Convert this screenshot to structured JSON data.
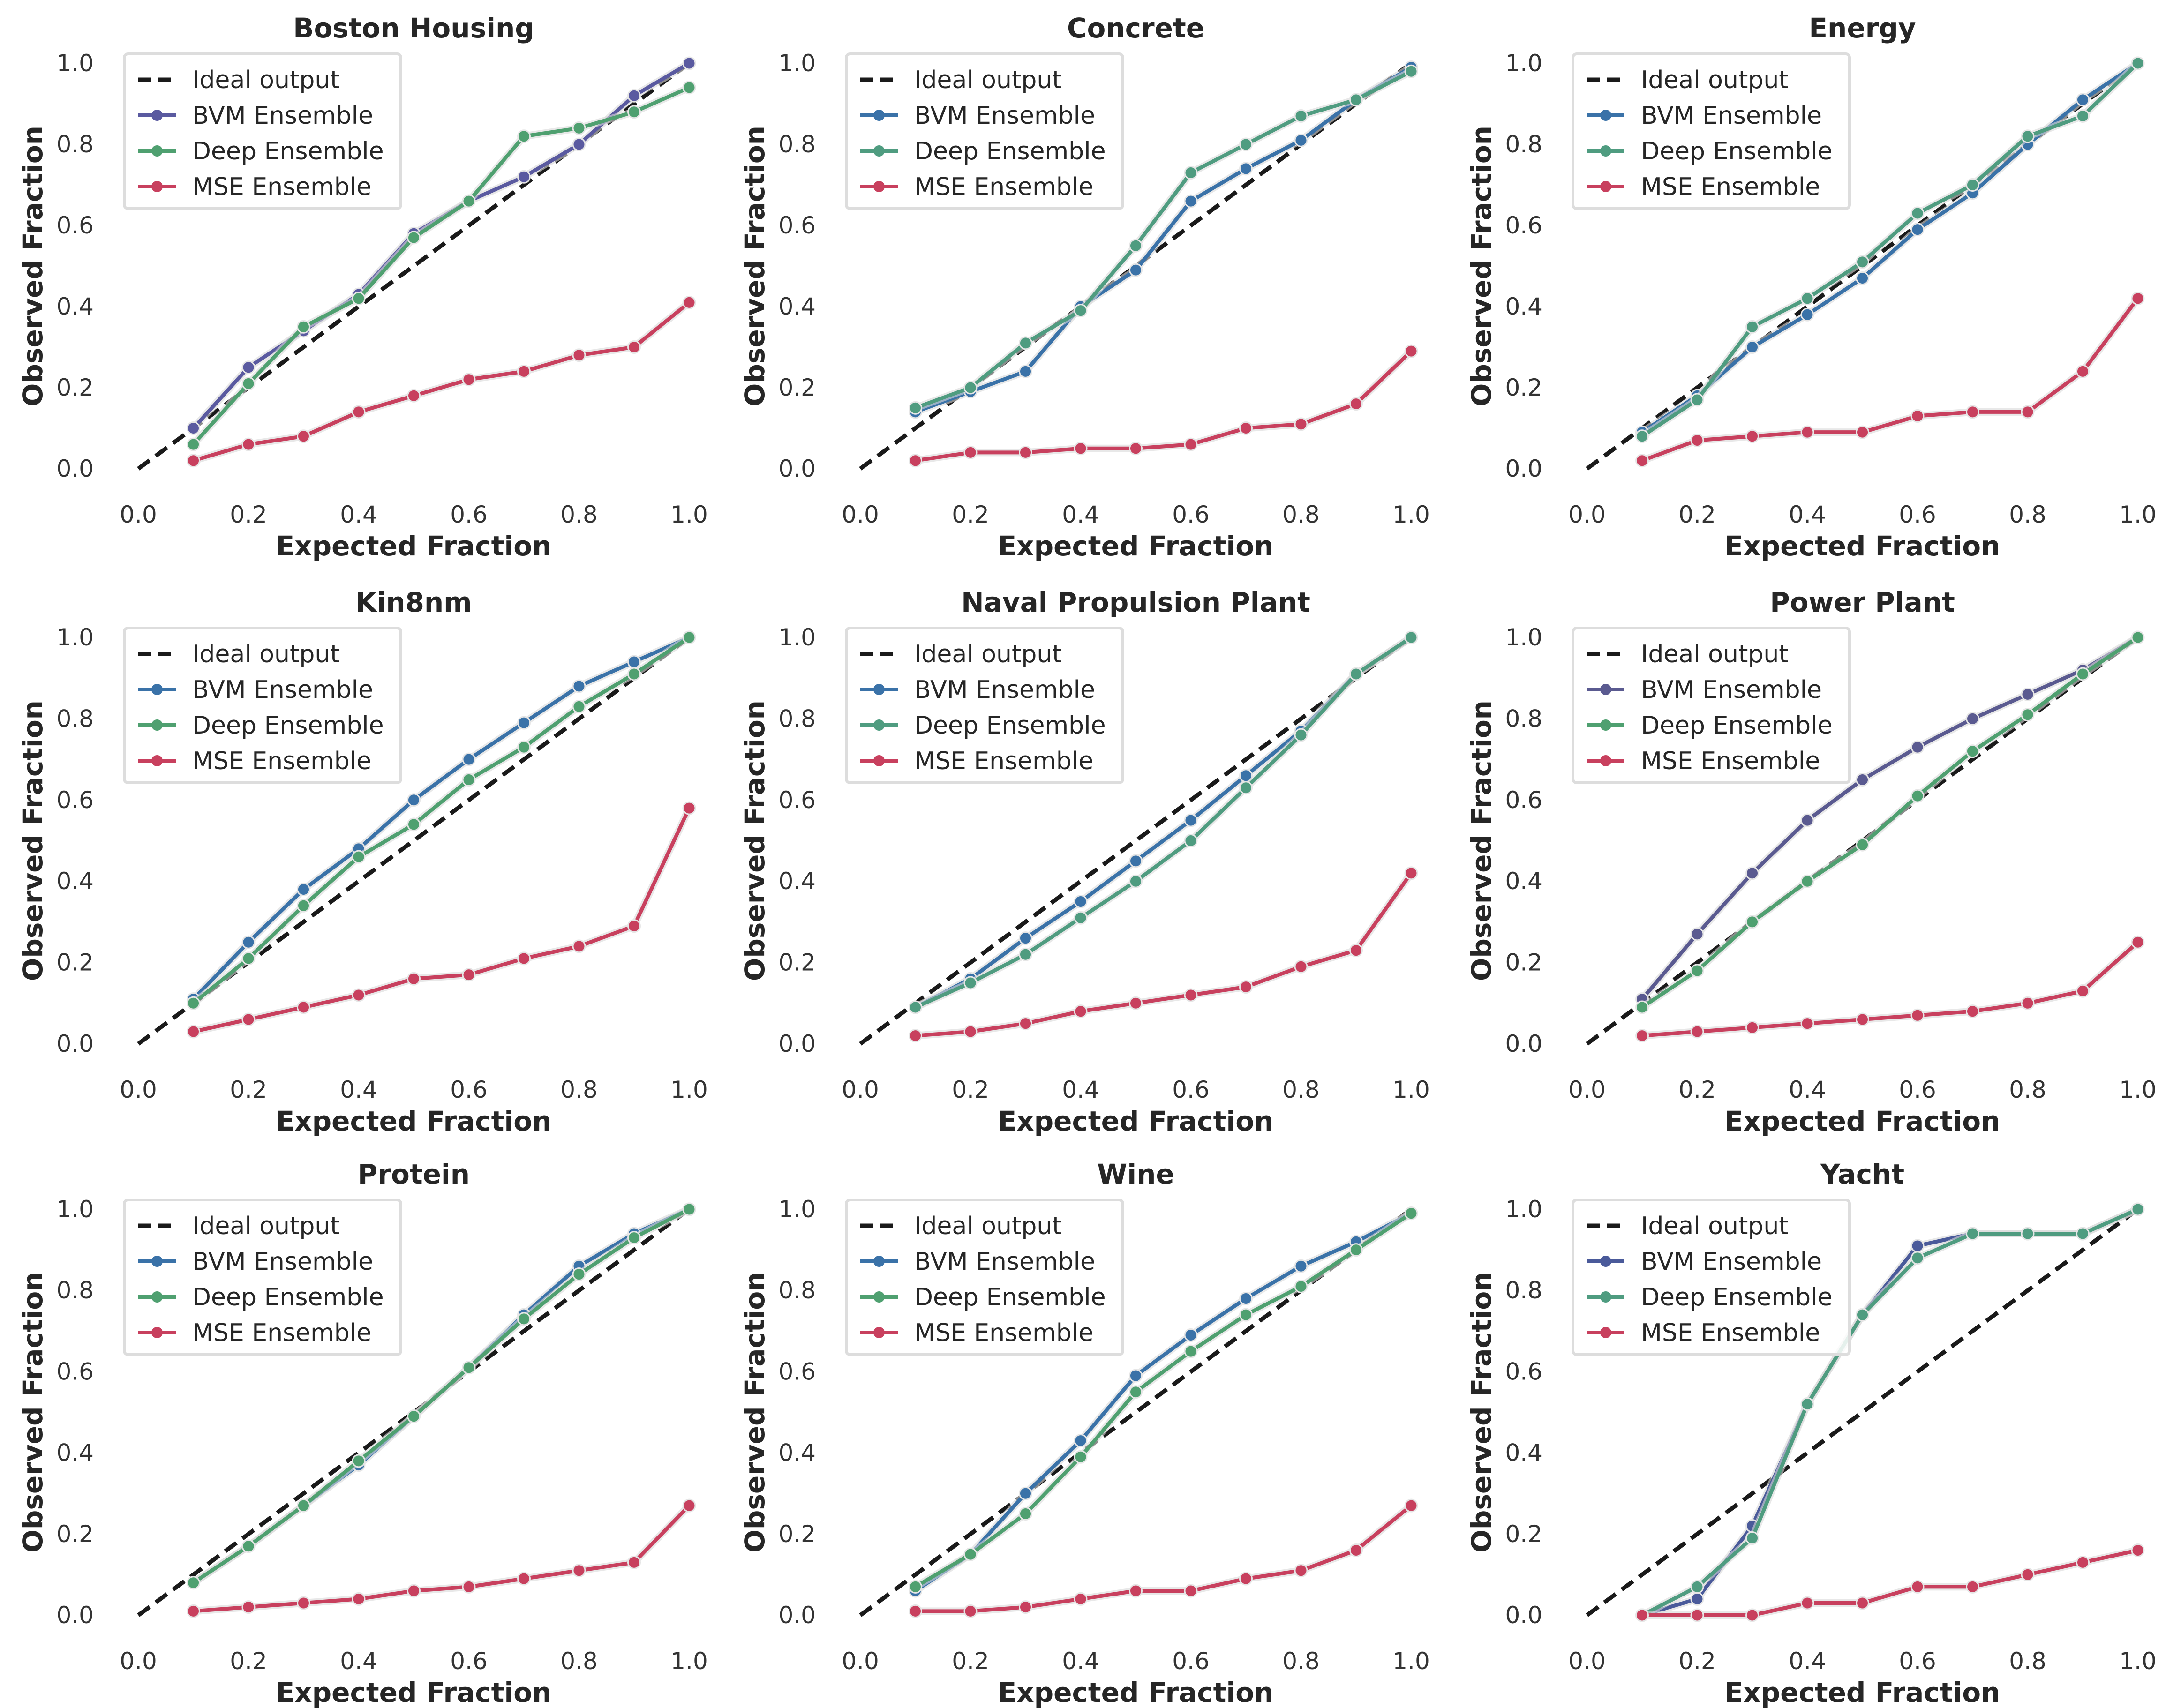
{
  "figure": {
    "background": "#ffffff"
  },
  "chart_data": [
    {
      "type": "line",
      "title": "Boston Housing",
      "xlabel": "Expected Fraction",
      "ylabel": "Observed Fraction",
      "xlim": [
        0,
        1
      ],
      "ylim": [
        0,
        1
      ],
      "x_ticks": [
        "0.0",
        "0.2",
        "0.4",
        "0.6",
        "0.8",
        "1.0"
      ],
      "y_ticks": [
        "0.0",
        "0.2",
        "0.4",
        "0.6",
        "0.8",
        "1.0"
      ],
      "grid": false,
      "legend_position": "top-left",
      "x": [
        0.1,
        0.2,
        0.3,
        0.4,
        0.5,
        0.6,
        0.7,
        0.8,
        0.9,
        1.0
      ],
      "ideal": {
        "name": "Ideal output",
        "color": "#1a1a1a",
        "x": [
          0,
          1
        ],
        "y": [
          0,
          1
        ]
      },
      "series": [
        {
          "name": "BVM Ensemble",
          "color": "#5a5aa0",
          "values": [
            0.1,
            0.25,
            0.34,
            0.43,
            0.58,
            0.66,
            0.72,
            0.8,
            0.92,
            1.0
          ]
        },
        {
          "name": "Deep Ensemble",
          "color": "#4fa070",
          "values": [
            0.06,
            0.21,
            0.35,
            0.42,
            0.57,
            0.66,
            0.82,
            0.84,
            0.88,
            0.94
          ]
        },
        {
          "name": "MSE Ensemble",
          "color": "#c8405e",
          "values": [
            0.02,
            0.06,
            0.08,
            0.14,
            0.18,
            0.22,
            0.24,
            0.28,
            0.3,
            0.41
          ]
        }
      ]
    },
    {
      "type": "line",
      "title": "Concrete",
      "xlabel": "Expected Fraction",
      "ylabel": "Observed Fraction",
      "xlim": [
        0,
        1
      ],
      "ylim": [
        0,
        1
      ],
      "x_ticks": [
        "0.0",
        "0.2",
        "0.4",
        "0.6",
        "0.8",
        "1.0"
      ],
      "y_ticks": [
        "0.0",
        "0.2",
        "0.4",
        "0.6",
        "0.8",
        "1.0"
      ],
      "grid": false,
      "legend_position": "top-left",
      "x": [
        0.1,
        0.2,
        0.3,
        0.4,
        0.5,
        0.6,
        0.7,
        0.8,
        0.9,
        1.0
      ],
      "ideal": {
        "name": "Ideal output",
        "color": "#1a1a1a",
        "x": [
          0,
          1
        ],
        "y": [
          0,
          1
        ]
      },
      "series": [
        {
          "name": "BVM Ensemble",
          "color": "#3a72a8",
          "values": [
            0.14,
            0.19,
            0.24,
            0.4,
            0.49,
            0.66,
            0.74,
            0.81,
            0.91,
            0.99
          ]
        },
        {
          "name": "Deep Ensemble",
          "color": "#4f9c80",
          "values": [
            0.15,
            0.2,
            0.31,
            0.39,
            0.55,
            0.73,
            0.8,
            0.87,
            0.91,
            0.98
          ]
        },
        {
          "name": "MSE Ensemble",
          "color": "#c8405e",
          "values": [
            0.02,
            0.04,
            0.04,
            0.05,
            0.05,
            0.06,
            0.1,
            0.11,
            0.16,
            0.29
          ]
        }
      ]
    },
    {
      "type": "line",
      "title": "Energy",
      "xlabel": "Expected Fraction",
      "ylabel": "Observed Fraction",
      "xlim": [
        0,
        1
      ],
      "ylim": [
        0,
        1
      ],
      "x_ticks": [
        "0.0",
        "0.2",
        "0.4",
        "0.6",
        "0.8",
        "1.0"
      ],
      "y_ticks": [
        "0.0",
        "0.2",
        "0.4",
        "0.6",
        "0.8",
        "1.0"
      ],
      "grid": false,
      "legend_position": "top-left",
      "x": [
        0.1,
        0.2,
        0.3,
        0.4,
        0.5,
        0.6,
        0.7,
        0.8,
        0.9,
        1.0
      ],
      "ideal": {
        "name": "Ideal output",
        "color": "#1a1a1a",
        "x": [
          0,
          1
        ],
        "y": [
          0,
          1
        ]
      },
      "series": [
        {
          "name": "BVM Ensemble",
          "color": "#3a72a8",
          "values": [
            0.09,
            0.18,
            0.3,
            0.38,
            0.47,
            0.59,
            0.68,
            0.8,
            0.91,
            1.0
          ]
        },
        {
          "name": "Deep Ensemble",
          "color": "#4f9c80",
          "values": [
            0.08,
            0.17,
            0.35,
            0.42,
            0.51,
            0.63,
            0.7,
            0.82,
            0.87,
            1.0
          ]
        },
        {
          "name": "MSE Ensemble",
          "color": "#c8405e",
          "values": [
            0.02,
            0.07,
            0.08,
            0.09,
            0.09,
            0.13,
            0.14,
            0.14,
            0.24,
            0.42
          ]
        }
      ]
    },
    {
      "type": "line",
      "title": "Kin8nm",
      "xlabel": "Expected Fraction",
      "ylabel": "Observed Fraction",
      "xlim": [
        0,
        1
      ],
      "ylim": [
        0,
        1
      ],
      "x_ticks": [
        "0.0",
        "0.2",
        "0.4",
        "0.6",
        "0.8",
        "1.0"
      ],
      "y_ticks": [
        "0.0",
        "0.2",
        "0.4",
        "0.6",
        "0.8",
        "1.0"
      ],
      "grid": false,
      "legend_position": "top-left",
      "x": [
        0.1,
        0.2,
        0.3,
        0.4,
        0.5,
        0.6,
        0.7,
        0.8,
        0.9,
        1.0
      ],
      "ideal": {
        "name": "Ideal output",
        "color": "#1a1a1a",
        "x": [
          0,
          1
        ],
        "y": [
          0,
          1
        ]
      },
      "series": [
        {
          "name": "BVM Ensemble",
          "color": "#3a72a8",
          "values": [
            0.11,
            0.25,
            0.38,
            0.48,
            0.6,
            0.7,
            0.79,
            0.88,
            0.94,
            1.0
          ]
        },
        {
          "name": "Deep Ensemble",
          "color": "#4fa070",
          "values": [
            0.1,
            0.21,
            0.34,
            0.46,
            0.54,
            0.65,
            0.73,
            0.83,
            0.91,
            1.0
          ]
        },
        {
          "name": "MSE Ensemble",
          "color": "#c8405e",
          "values": [
            0.03,
            0.06,
            0.09,
            0.12,
            0.16,
            0.17,
            0.21,
            0.24,
            0.29,
            0.58
          ]
        }
      ]
    },
    {
      "type": "line",
      "title": "Naval Propulsion Plant",
      "xlabel": "Expected Fraction",
      "ylabel": "Observed Fraction",
      "xlim": [
        0,
        1
      ],
      "ylim": [
        0,
        1
      ],
      "x_ticks": [
        "0.0",
        "0.2",
        "0.4",
        "0.6",
        "0.8",
        "1.0"
      ],
      "y_ticks": [
        "0.0",
        "0.2",
        "0.4",
        "0.6",
        "0.8",
        "1.0"
      ],
      "grid": false,
      "legend_position": "top-left",
      "x": [
        0.1,
        0.2,
        0.3,
        0.4,
        0.5,
        0.6,
        0.7,
        0.8,
        0.9,
        1.0
      ],
      "ideal": {
        "name": "Ideal output",
        "color": "#1a1a1a",
        "x": [
          0,
          1
        ],
        "y": [
          0,
          1
        ]
      },
      "series": [
        {
          "name": "BVM Ensemble",
          "color": "#3a72a8",
          "values": [
            0.09,
            0.16,
            0.26,
            0.35,
            0.45,
            0.55,
            0.66,
            0.77,
            0.91,
            1.0
          ]
        },
        {
          "name": "Deep Ensemble",
          "color": "#4f9c80",
          "values": [
            0.09,
            0.15,
            0.22,
            0.31,
            0.4,
            0.5,
            0.63,
            0.76,
            0.91,
            1.0
          ]
        },
        {
          "name": "MSE Ensemble",
          "color": "#c8405e",
          "values": [
            0.02,
            0.03,
            0.05,
            0.08,
            0.1,
            0.12,
            0.14,
            0.19,
            0.23,
            0.42
          ]
        }
      ]
    },
    {
      "type": "line",
      "title": "Power Plant",
      "xlabel": "Expected Fraction",
      "ylabel": "Observed Fraction",
      "xlim": [
        0,
        1
      ],
      "ylim": [
        0,
        1
      ],
      "x_ticks": [
        "0.0",
        "0.2",
        "0.4",
        "0.6",
        "0.8",
        "1.0"
      ],
      "y_ticks": [
        "0.0",
        "0.2",
        "0.4",
        "0.6",
        "0.8",
        "1.0"
      ],
      "grid": false,
      "legend_position": "top-left",
      "x": [
        0.1,
        0.2,
        0.3,
        0.4,
        0.5,
        0.6,
        0.7,
        0.8,
        0.9,
        1.0
      ],
      "ideal": {
        "name": "Ideal output",
        "color": "#1a1a1a",
        "x": [
          0,
          1
        ],
        "y": [
          0,
          1
        ]
      },
      "series": [
        {
          "name": "BVM Ensemble",
          "color": "#5a5a90",
          "values": [
            0.11,
            0.27,
            0.42,
            0.55,
            0.65,
            0.73,
            0.8,
            0.86,
            0.92,
            1.0
          ]
        },
        {
          "name": "Deep Ensemble",
          "color": "#4fa070",
          "values": [
            0.09,
            0.18,
            0.3,
            0.4,
            0.49,
            0.61,
            0.72,
            0.81,
            0.91,
            1.0
          ]
        },
        {
          "name": "MSE Ensemble",
          "color": "#c8405e",
          "values": [
            0.02,
            0.03,
            0.04,
            0.05,
            0.06,
            0.07,
            0.08,
            0.1,
            0.13,
            0.25
          ]
        }
      ]
    },
    {
      "type": "line",
      "title": "Protein",
      "xlabel": "Expected Fraction",
      "ylabel": "Observed Fraction",
      "xlim": [
        0,
        1
      ],
      "ylim": [
        0,
        1
      ],
      "x_ticks": [
        "0.0",
        "0.2",
        "0.4",
        "0.6",
        "0.8",
        "1.0"
      ],
      "y_ticks": [
        "0.0",
        "0.2",
        "0.4",
        "0.6",
        "0.8",
        "1.0"
      ],
      "grid": false,
      "legend_position": "top-left",
      "x": [
        0.1,
        0.2,
        0.3,
        0.4,
        0.5,
        0.6,
        0.7,
        0.8,
        0.9,
        1.0
      ],
      "ideal": {
        "name": "Ideal output",
        "color": "#1a1a1a",
        "x": [
          0,
          1
        ],
        "y": [
          0,
          1
        ]
      },
      "series": [
        {
          "name": "BVM Ensemble",
          "color": "#3a72a8",
          "values": [
            0.08,
            0.17,
            0.27,
            0.37,
            0.49,
            0.61,
            0.74,
            0.86,
            0.94,
            1.0
          ]
        },
        {
          "name": "Deep Ensemble",
          "color": "#4fa070",
          "values": [
            0.08,
            0.17,
            0.27,
            0.38,
            0.49,
            0.61,
            0.73,
            0.84,
            0.93,
            1.0
          ]
        },
        {
          "name": "MSE Ensemble",
          "color": "#c8405e",
          "values": [
            0.01,
            0.02,
            0.03,
            0.04,
            0.06,
            0.07,
            0.09,
            0.11,
            0.13,
            0.27
          ]
        }
      ]
    },
    {
      "type": "line",
      "title": "Wine",
      "xlabel": "Expected Fraction",
      "ylabel": "Observed Fraction",
      "xlim": [
        0,
        1
      ],
      "ylim": [
        0,
        1
      ],
      "x_ticks": [
        "0.0",
        "0.2",
        "0.4",
        "0.6",
        "0.8",
        "1.0"
      ],
      "y_ticks": [
        "0.0",
        "0.2",
        "0.4",
        "0.6",
        "0.8",
        "1.0"
      ],
      "grid": false,
      "legend_position": "top-left",
      "x": [
        0.1,
        0.2,
        0.3,
        0.4,
        0.5,
        0.6,
        0.7,
        0.8,
        0.9,
        1.0
      ],
      "ideal": {
        "name": "Ideal output",
        "color": "#1a1a1a",
        "x": [
          0,
          1
        ],
        "y": [
          0,
          1
        ]
      },
      "series": [
        {
          "name": "BVM Ensemble",
          "color": "#3a72a8",
          "values": [
            0.06,
            0.15,
            0.3,
            0.43,
            0.59,
            0.69,
            0.78,
            0.86,
            0.92,
            0.99
          ]
        },
        {
          "name": "Deep Ensemble",
          "color": "#4fa070",
          "values": [
            0.07,
            0.15,
            0.25,
            0.39,
            0.55,
            0.65,
            0.74,
            0.81,
            0.9,
            0.99
          ]
        },
        {
          "name": "MSE Ensemble",
          "color": "#c8405e",
          "values": [
            0.01,
            0.01,
            0.02,
            0.04,
            0.06,
            0.06,
            0.09,
            0.11,
            0.16,
            0.27
          ]
        }
      ]
    },
    {
      "type": "line",
      "title": "Yacht",
      "xlabel": "Expected Fraction",
      "ylabel": "Observed Fraction",
      "xlim": [
        0,
        1
      ],
      "ylim": [
        0,
        1
      ],
      "x_ticks": [
        "0.0",
        "0.2",
        "0.4",
        "0.6",
        "0.8",
        "1.0"
      ],
      "y_ticks": [
        "0.0",
        "0.2",
        "0.4",
        "0.6",
        "0.8",
        "1.0"
      ],
      "grid": false,
      "legend_position": "top-left",
      "x": [
        0.1,
        0.2,
        0.3,
        0.4,
        0.5,
        0.6,
        0.7,
        0.8,
        0.9,
        1.0
      ],
      "ideal": {
        "name": "Ideal output",
        "color": "#1a1a1a",
        "x": [
          0,
          1
        ],
        "y": [
          0,
          1
        ]
      },
      "series": [
        {
          "name": "BVM Ensemble",
          "color": "#4a5a9a",
          "values": [
            0.0,
            0.04,
            0.22,
            0.52,
            0.74,
            0.91,
            0.94,
            0.94,
            0.94,
            1.0
          ]
        },
        {
          "name": "Deep Ensemble",
          "color": "#4f9c80",
          "values": [
            0.0,
            0.07,
            0.19,
            0.52,
            0.74,
            0.88,
            0.94,
            0.94,
            0.94,
            1.0
          ]
        },
        {
          "name": "MSE Ensemble",
          "color": "#c8405e",
          "values": [
            0.0,
            0.0,
            0.0,
            0.03,
            0.03,
            0.07,
            0.07,
            0.1,
            0.13,
            0.16
          ]
        }
      ]
    }
  ]
}
